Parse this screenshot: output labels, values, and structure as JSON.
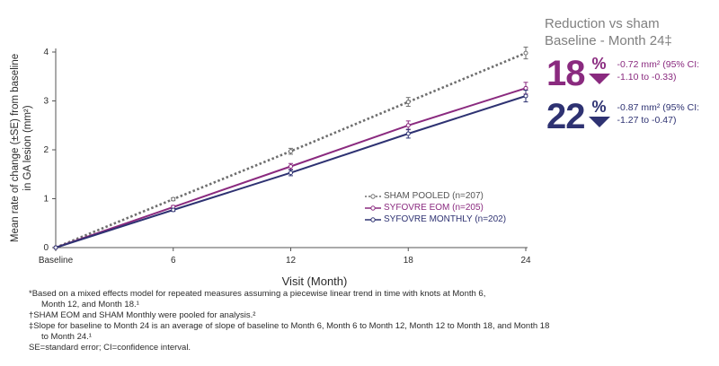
{
  "chart_data": {
    "type": "line",
    "ylabel": "Mean rate of change (±SE) from baseline\nin GA lesion (mm²)",
    "xlabel": "Visit (Month)",
    "categories": [
      "Baseline",
      "6",
      "12",
      "18",
      "24"
    ],
    "x": [
      0,
      6,
      12,
      18,
      24
    ],
    "ylim": [
      0,
      4
    ],
    "yticks": [
      "0",
      "1",
      "2",
      "3",
      "4"
    ],
    "grid": false,
    "legend_position": "center-right",
    "series": [
      {
        "name": "SHAM POOLED (n=207)",
        "color": "#6e6e6e",
        "dashed": true,
        "values": [
          0,
          0.99,
          1.97,
          2.98,
          3.98
        ],
        "se": [
          0,
          0.03,
          0.06,
          0.09,
          0.12
        ]
      },
      {
        "name": "SYFOVRE EOM (n=205)",
        "color": "#8a2a7f",
        "dashed": false,
        "values": [
          0,
          0.83,
          1.66,
          2.5,
          3.26
        ],
        "se": [
          0,
          0.03,
          0.06,
          0.09,
          0.12
        ]
      },
      {
        "name": "SYFOVRE MONTHLY (n=202)",
        "color": "#2e3272",
        "dashed": false,
        "values": [
          0,
          0.77,
          1.53,
          2.33,
          3.1
        ],
        "se": [
          0,
          0.03,
          0.06,
          0.09,
          0.12
        ]
      }
    ]
  },
  "panel": {
    "title_line1": "Reduction vs sham",
    "title_line2": "Baseline - Month 24‡",
    "stats": [
      {
        "value": "18",
        "percent": "%",
        "color": "#8a2a7f",
        "line1": "-0.72 mm² (95% CI:",
        "line2": "-1.10 to -0.33)"
      },
      {
        "value": "22",
        "percent": "%",
        "color": "#2e3272",
        "line1": "-0.87 mm² (95% CI:",
        "line2": "-1.27 to -0.47)"
      }
    ]
  },
  "footnotes": {
    "f1a": "*Based on a mixed effects model for repeated measures assuming a piecewise linear trend in time with knots at Month 6,",
    "f1b": "Month 12, and Month 18.¹",
    "f2": "†SHAM EOM and SHAM Monthly were pooled for analysis.²",
    "f3a": "‡Slope for baseline to Month 24 is an average of slope of baseline to Month 6, Month 6 to Month 12, Month 12 to Month 18, and Month 18",
    "f3b": "to Month 24.¹",
    "f4": "SE=standard error; CI=confidence interval."
  }
}
